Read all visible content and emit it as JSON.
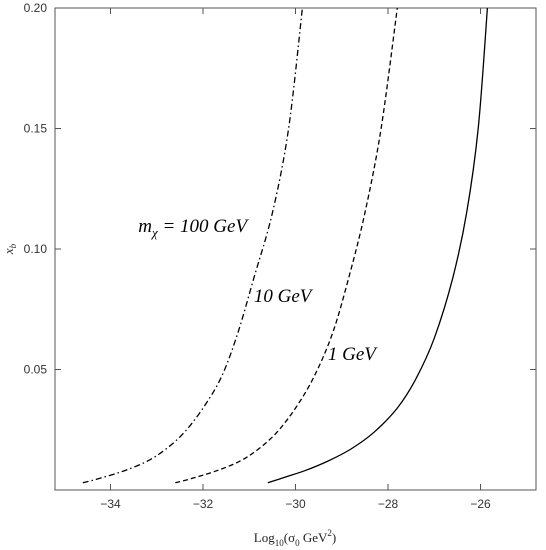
{
  "chart_data": {
    "type": "line",
    "title": "",
    "xlabel": {
      "base": "Log",
      "sub": "10",
      "open": "(σ",
      "sub2": "0",
      "mid": " GeV",
      "sup": "2",
      "close": ")"
    },
    "ylabel": {
      "base": "x",
      "sub": "b"
    },
    "xlim": [
      -35.2,
      -24.8
    ],
    "ylim": [
      0,
      0.2
    ],
    "xticks": [
      -34,
      -32,
      -30,
      -28,
      -26
    ],
    "xtick_labels": [
      "−34",
      "−32",
      "−30",
      "−28",
      "−26"
    ],
    "yticks": [
      0.05,
      0.1,
      0.15,
      0.2
    ],
    "ytick_labels": [
      "0.05",
      "0.10",
      "0.15",
      "0.20"
    ],
    "grid": false,
    "series": [
      {
        "name": "1 GeV",
        "style": "solid",
        "x": [
          -30.6,
          -30.2,
          -29.8,
          -29.3,
          -28.8,
          -28.3,
          -27.8,
          -27.4,
          -27.0,
          -26.6,
          -26.3,
          -26.05,
          -25.85
        ],
        "y": [
          0.003,
          0.0055,
          0.008,
          0.012,
          0.017,
          0.024,
          0.034,
          0.046,
          0.063,
          0.088,
          0.115,
          0.15,
          0.2
        ]
      },
      {
        "name": "10 GeV",
        "style": "dashed",
        "x": [
          -32.6,
          -32.2,
          -31.7,
          -31.2,
          -30.8,
          -30.4,
          -30.0,
          -29.6,
          -29.2,
          -28.85,
          -28.5,
          -28.15,
          -27.8
        ],
        "y": [
          0.003,
          0.005,
          0.008,
          0.012,
          0.017,
          0.024,
          0.034,
          0.047,
          0.065,
          0.088,
          0.115,
          0.15,
          0.2
        ]
      },
      {
        "name": "100 GeV",
        "style": "dashdot",
        "x": [
          -34.6,
          -34.2,
          -33.7,
          -33.2,
          -32.8,
          -32.4,
          -32.0,
          -31.6,
          -31.25,
          -30.9,
          -30.5,
          -30.15,
          -29.85
        ],
        "y": [
          0.003,
          0.005,
          0.008,
          0.012,
          0.017,
          0.024,
          0.034,
          0.047,
          0.065,
          0.088,
          0.115,
          0.15,
          0.2
        ]
      }
    ],
    "annotations": [
      {
        "id": "100",
        "prefix": "m",
        "sub": "χ",
        "text": " = 100 GeV",
        "x": -33.4,
        "y": 0.107
      },
      {
        "id": "10",
        "text": "10 GeV",
        "x": -30.9,
        "y": 0.078
      },
      {
        "id": "1",
        "text": "1 GeV",
        "x": -29.3,
        "y": 0.054
      }
    ]
  }
}
